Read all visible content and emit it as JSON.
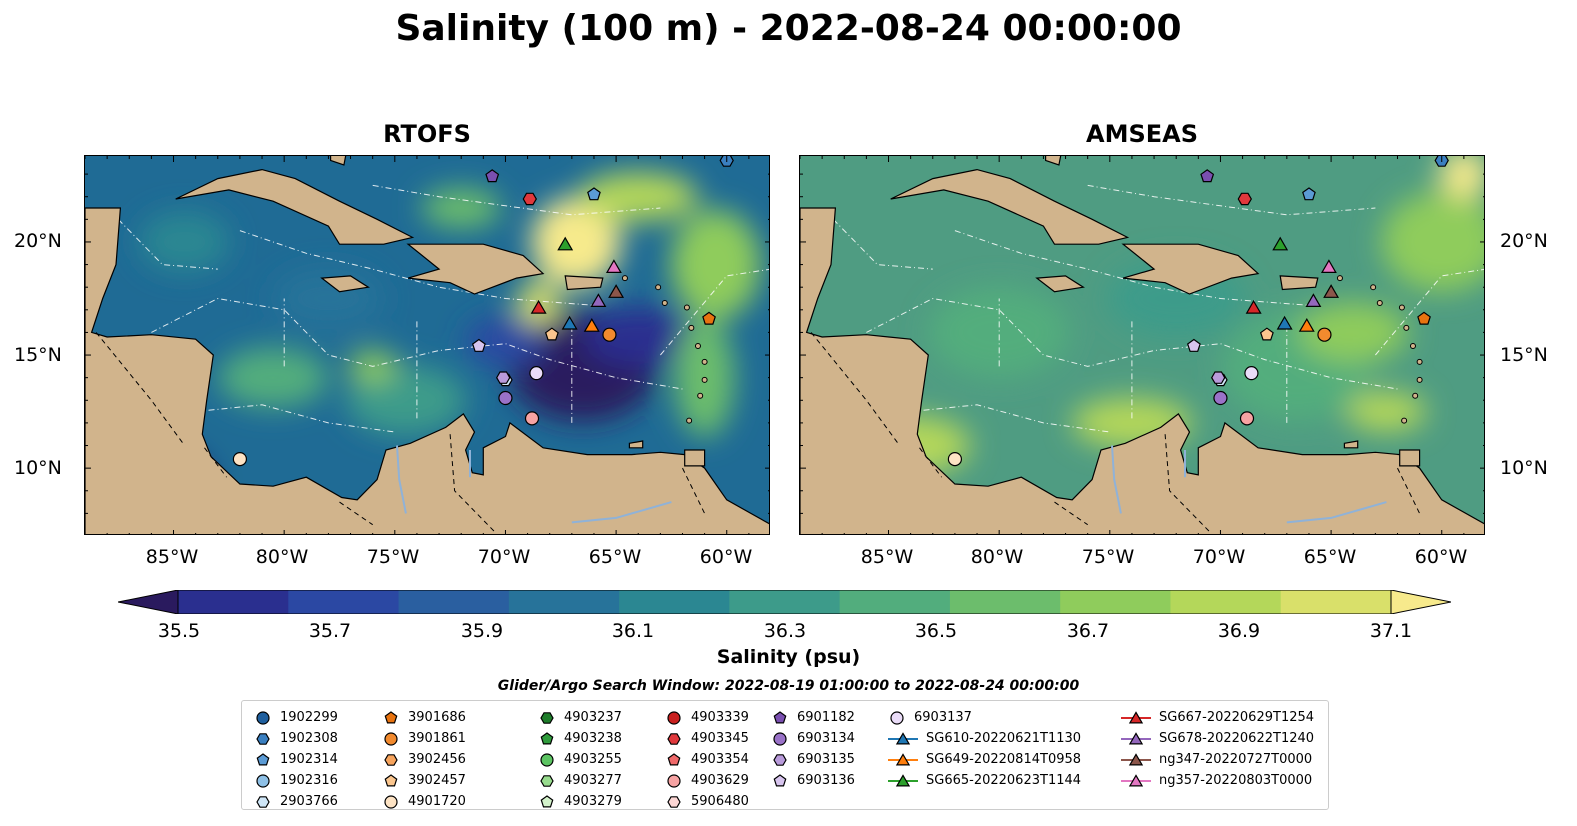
{
  "title": "Salinity (100 m) - 2022-08-24 00:00:00",
  "panels": [
    {
      "title": "RTOFS",
      "palette": "rtofs"
    },
    {
      "title": "AMSEAS",
      "palette": "amseas"
    }
  ],
  "axes": {
    "lat_labels": [
      "20°N",
      "15°N",
      "10°N"
    ],
    "lon_labels": [
      "85°W",
      "80°W",
      "75°W",
      "70°W",
      "65°W",
      "60°W"
    ]
  },
  "colorbar": {
    "label": "Salinity (psu)",
    "ticks": [
      "35.5",
      "35.7",
      "35.9",
      "36.1",
      "36.3",
      "36.5",
      "36.7",
      "36.9",
      "37.1"
    ],
    "vmin": 35.5,
    "vmax": 37.1,
    "colors": [
      "#2a1a5e",
      "#2a2f8f",
      "#2b48a3",
      "#2a5fa0",
      "#27739a",
      "#2b8792",
      "#3d9b8a",
      "#52ad7d",
      "#6cbd6c",
      "#8fcc5c",
      "#b4d75a",
      "#d9e06a",
      "#f7ea8c"
    ]
  },
  "legend": {
    "title": "Glider/Argo Search Window: 2022-08-19 01:00:00 to 2022-08-24 00:00:00",
    "columns": [
      [
        {
          "label": "1902299",
          "marker": "circle",
          "color": "#1f5f9e"
        },
        {
          "label": "1902308",
          "marker": "hexagon",
          "color": "#3a7fc0"
        },
        {
          "label": "1902314",
          "marker": "pentagon",
          "color": "#5b9bd5"
        },
        {
          "label": "1902316",
          "marker": "circle",
          "color": "#8ec0e6"
        },
        {
          "label": "2903766",
          "marker": "hexagon",
          "color": "#cfe6f7"
        }
      ],
      [
        {
          "label": "3901686",
          "marker": "pentagon",
          "color": "#e8730f"
        },
        {
          "label": "3901861",
          "marker": "circle",
          "color": "#f28a2e"
        },
        {
          "label": "3902456",
          "marker": "hexagon",
          "color": "#f7a45d"
        },
        {
          "label": "3902457",
          "marker": "pentagon",
          "color": "#fbc68e"
        },
        {
          "label": "4901720",
          "marker": "circle",
          "color": "#fde3c4"
        }
      ],
      [
        {
          "label": "4903237",
          "marker": "hexagon",
          "color": "#1e7d2a"
        },
        {
          "label": "4903238",
          "marker": "pentagon",
          "color": "#2f9c3c"
        },
        {
          "label": "4903255",
          "marker": "circle",
          "color": "#5cc462"
        },
        {
          "label": "4903277",
          "marker": "hexagon",
          "color": "#98dc8e"
        },
        {
          "label": "4903279",
          "marker": "pentagon",
          "color": "#d3f2cb"
        }
      ],
      [
        {
          "label": "4903339",
          "marker": "circle",
          "color": "#c9201f"
        },
        {
          "label": "4903345",
          "marker": "hexagon",
          "color": "#e0383c"
        },
        {
          "label": "4903354",
          "marker": "pentagon",
          "color": "#f0696a"
        },
        {
          "label": "4903629",
          "marker": "circle",
          "color": "#f7a3a3"
        },
        {
          "label": "5906480",
          "marker": "hexagon",
          "color": "#fcd6d4"
        }
      ],
      [
        {
          "label": "6901182",
          "marker": "pentagon",
          "color": "#7a4fb0"
        },
        {
          "label": "6903134",
          "marker": "circle",
          "color": "#9a72c8"
        },
        {
          "label": "6903135",
          "marker": "hexagon",
          "color": "#b99bdb"
        },
        {
          "label": "6903136",
          "marker": "pentagon",
          "color": "#d7c4ee"
        }
      ],
      [
        {
          "label": "6903137",
          "marker": "circle",
          "color": "#eadcf8"
        },
        {
          "label": "SG610-20220621T1130",
          "marker": "triangle-line",
          "color": "#1f77b4"
        },
        {
          "label": "SG649-20220814T0958",
          "marker": "triangle-line",
          "color": "#ff7f0e"
        },
        {
          "label": "SG665-20220623T1144",
          "marker": "triangle-line",
          "color": "#2ca02c"
        }
      ],
      [
        {
          "label": "SG667-20220629T1254",
          "marker": "triangle-line",
          "color": "#d62728"
        },
        {
          "label": "SG678-20220622T1240",
          "marker": "triangle-line",
          "color": "#9467bd"
        },
        {
          "label": "ng347-20220727T0000",
          "marker": "triangle-line",
          "color": "#8c564b"
        },
        {
          "label": "ng357-20220803T0000",
          "marker": "triangle-line",
          "color": "#e377c2"
        }
      ]
    ]
  },
  "markers": [
    {
      "label": "1902308",
      "lon": -60.0,
      "lat": 23.6
    },
    {
      "label": "1902314",
      "lon": -66.0,
      "lat": 22.1
    },
    {
      "label": "6901182",
      "lon": -70.6,
      "lat": 22.9
    },
    {
      "label": "4903345",
      "lon": -68.9,
      "lat": 21.9
    },
    {
      "label": "SG665-20220623T1144",
      "lon": -67.3,
      "lat": 19.9
    },
    {
      "label": "ng357-20220803T0000",
      "lon": -65.1,
      "lat": 18.9
    },
    {
      "label": "SG678-20220622T1240",
      "lon": -65.8,
      "lat": 17.4
    },
    {
      "label": "ng347-20220727T0000",
      "lon": -65.0,
      "lat": 17.8
    },
    {
      "label": "SG667-20220629T1254",
      "lon": -68.5,
      "lat": 17.1
    },
    {
      "label": "SG610-20220621T1130",
      "lon": -67.1,
      "lat": 16.4
    },
    {
      "label": "SG649-20220814T0958",
      "lon": -66.1,
      "lat": 16.3
    },
    {
      "label": "3901686",
      "lon": -60.8,
      "lat": 16.6
    },
    {
      "label": "3902457",
      "lon": -67.9,
      "lat": 15.9
    },
    {
      "label": "3901861",
      "lon": -65.3,
      "lat": 15.9
    },
    {
      "label": "6903136",
      "lon": -71.2,
      "lat": 15.4
    },
    {
      "label": "6903137",
      "lon": -68.6,
      "lat": 14.2
    },
    {
      "label": "2903766",
      "lon": -70.0,
      "lat": 13.9
    },
    {
      "label": "6903135",
      "lon": -70.1,
      "lat": 14.0
    },
    {
      "label": "6903134",
      "lon": -70.0,
      "lat": 13.1
    },
    {
      "label": "4903629",
      "lon": -68.8,
      "lat": 12.2
    },
    {
      "label": "4901720",
      "lon": -82.0,
      "lat": 10.4
    }
  ]
}
